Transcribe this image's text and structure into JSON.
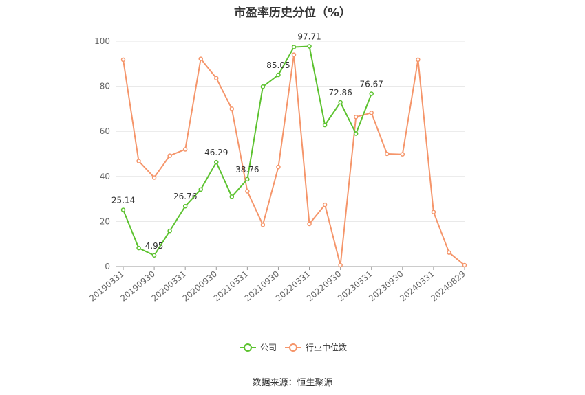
{
  "chart_data": {
    "type": "line",
    "title": "市盈率历史分位（%）",
    "source": "数据来源：恒生聚源",
    "xlabel": "",
    "ylabel": "",
    "ylim": [
      0,
      100
    ],
    "yticks": [
      0,
      20,
      40,
      60,
      80,
      100
    ],
    "grid": true,
    "legend_position": "bottom",
    "x": [
      "20190331",
      "20190630",
      "20190930",
      "20191231",
      "20200331",
      "20200630",
      "20200930",
      "20201231",
      "20210331",
      "20210630",
      "20210930",
      "20211231",
      "20220331",
      "20220630",
      "20220930",
      "20221231",
      "20230331",
      "20230630",
      "20230930",
      "20231231",
      "20240331",
      "20240630",
      "20240829"
    ],
    "x_tick_labels": [
      "20190331",
      "20190930",
      "20200331",
      "20200930",
      "20210331",
      "20210930",
      "20220331",
      "20220930",
      "20230331",
      "20230930",
      "20240331",
      "20240829"
    ],
    "series": [
      {
        "name": "公司",
        "color": "#5cc22f",
        "values": [
          25.14,
          8.2,
          4.95,
          15.8,
          26.76,
          34.2,
          46.29,
          31.0,
          38.76,
          79.8,
          85.05,
          97.4,
          97.71,
          62.8,
          72.86,
          59.0,
          76.67,
          null,
          null,
          null,
          null,
          null,
          null
        ],
        "labels": [
          {
            "index": 0,
            "text": "25.14"
          },
          {
            "index": 2,
            "text": "4.95"
          },
          {
            "index": 4,
            "text": "26.76"
          },
          {
            "index": 6,
            "text": "46.29"
          },
          {
            "index": 8,
            "text": "38.76"
          },
          {
            "index": 10,
            "text": "85.05"
          },
          {
            "index": 12,
            "text": "97.71"
          },
          {
            "index": 14,
            "text": "72.86"
          },
          {
            "index": 16,
            "text": "76.67"
          }
        ]
      },
      {
        "name": "行业中位数",
        "color": "#f5956a",
        "values": [
          91.8,
          46.8,
          39.5,
          49.2,
          52.0,
          92.2,
          83.6,
          70.0,
          33.4,
          18.5,
          44.2,
          94.0,
          18.9,
          27.4,
          0.6,
          66.4,
          68.2,
          50.0,
          49.8,
          91.8,
          24.2,
          6.2,
          0.6
        ]
      }
    ]
  }
}
